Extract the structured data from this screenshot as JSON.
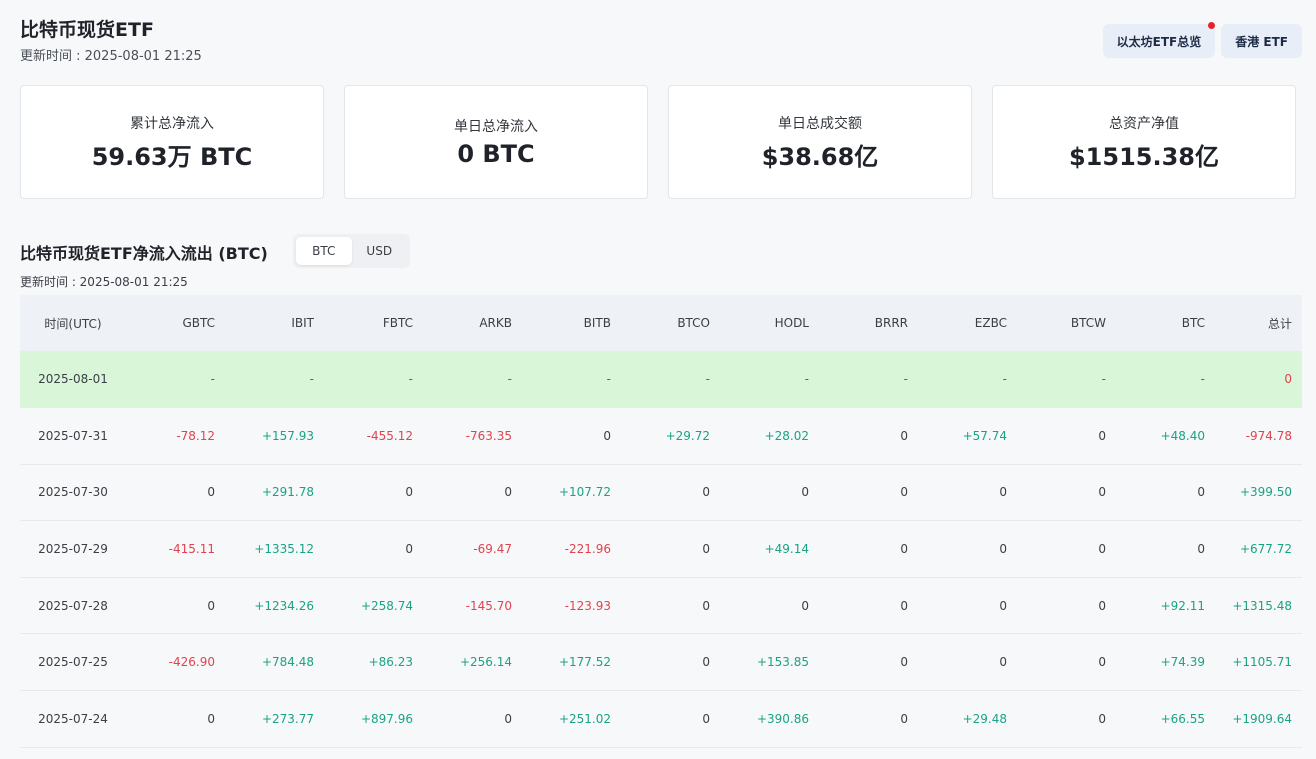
{
  "page": {
    "title": "比特币现货ETF",
    "updated": "更新时间 : 2025-08-01 21:25"
  },
  "top_buttons": [
    {
      "label": "以太坊ETF总览",
      "has_dot": true
    },
    {
      "label": "香港 ETF",
      "has_dot": false
    }
  ],
  "stats": [
    {
      "label": "累计总净流入",
      "value": "59.63万 BTC"
    },
    {
      "label": "单日总净流入",
      "value": "0 BTC"
    },
    {
      "label": "单日总成交额",
      "value": "$38.68亿"
    },
    {
      "label": "总资产净值",
      "value": "$1515.38亿"
    }
  ],
  "flows": {
    "title": "比特币现货ETF净流入流出 (BTC)",
    "units": [
      {
        "label": "BTC",
        "active": true
      },
      {
        "label": "USD",
        "active": false
      }
    ],
    "updated": "更新时间 : 2025-08-01 21:25",
    "columns": [
      "时间(UTC)",
      "GBTC",
      "IBIT",
      "FBTC",
      "ARKB",
      "BITB",
      "BTCO",
      "HODL",
      "BRRR",
      "EZBC",
      "BTCW",
      "BTC",
      "总计"
    ],
    "rows": [
      [
        "2025-08-01",
        "-",
        "-",
        "-",
        "-",
        "-",
        "-",
        "-",
        "-",
        "-",
        "-",
        "-",
        "0"
      ],
      [
        "2025-07-31",
        "-78.12",
        "+157.93",
        "-455.12",
        "-763.35",
        "0",
        "+29.72",
        "+28.02",
        "0",
        "+57.74",
        "0",
        "+48.40",
        "-974.78"
      ],
      [
        "2025-07-30",
        "0",
        "+291.78",
        "0",
        "0",
        "+107.72",
        "0",
        "0",
        "0",
        "0",
        "0",
        "0",
        "+399.50"
      ],
      [
        "2025-07-29",
        "-415.11",
        "+1335.12",
        "0",
        "-69.47",
        "-221.96",
        "0",
        "+49.14",
        "0",
        "0",
        "0",
        "0",
        "+677.72"
      ],
      [
        "2025-07-28",
        "0",
        "+1234.26",
        "+258.74",
        "-145.70",
        "-123.93",
        "0",
        "0",
        "0",
        "0",
        "0",
        "+92.11",
        "+1315.48"
      ],
      [
        "2025-07-25",
        "-426.90",
        "+784.48",
        "+86.23",
        "+256.14",
        "+177.52",
        "0",
        "+153.85",
        "0",
        "0",
        "0",
        "+74.39",
        "+1105.71"
      ],
      [
        "2025-07-24",
        "0",
        "+273.77",
        "+897.96",
        "0",
        "+251.02",
        "0",
        "+390.86",
        "0",
        "+29.48",
        "0",
        "+66.55",
        "+1909.64"
      ]
    ]
  },
  "colors": {
    "positive": "#19a385",
    "negative": "#e0434f",
    "zero": "#3a3f46",
    "today_row": "#d9f7d8"
  }
}
